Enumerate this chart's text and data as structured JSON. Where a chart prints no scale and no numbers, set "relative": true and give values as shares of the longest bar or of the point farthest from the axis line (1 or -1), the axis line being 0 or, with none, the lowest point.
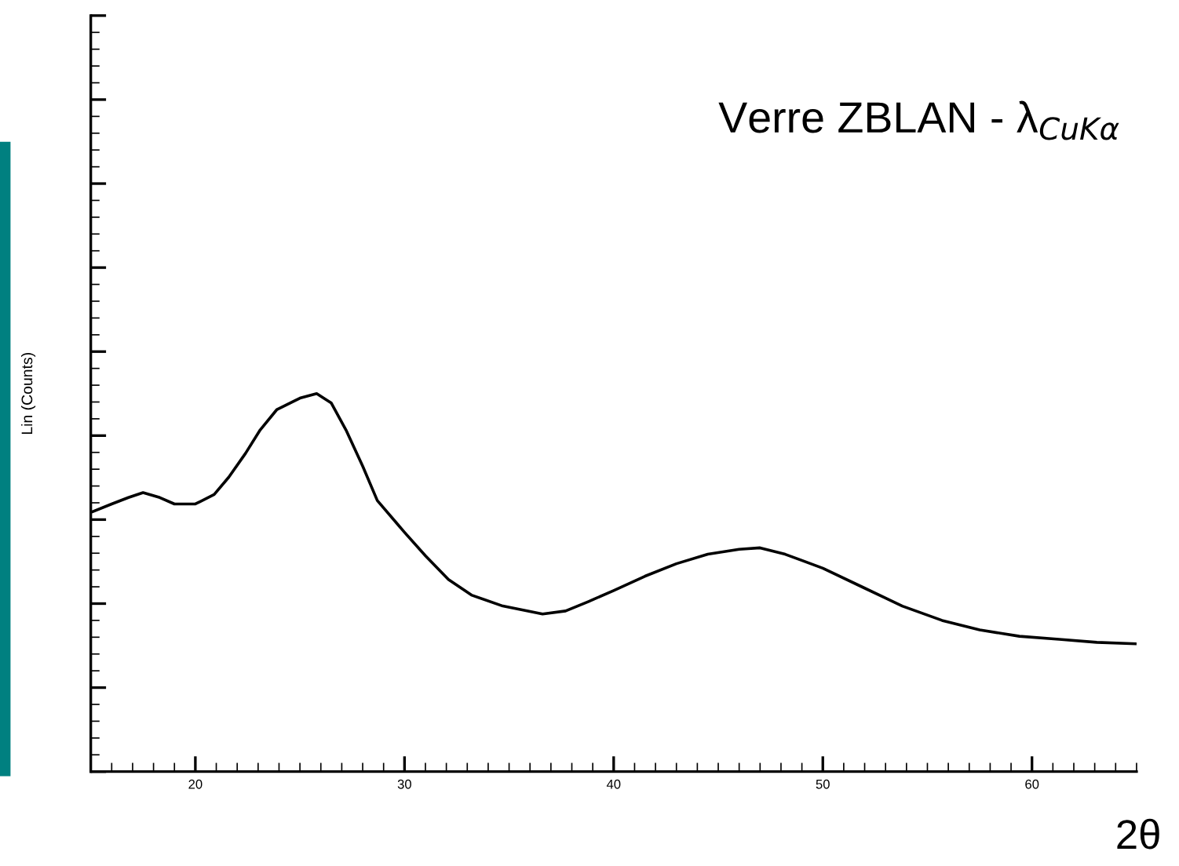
{
  "chart_data": {
    "type": "line",
    "title": "Verre ZBLAN - λ$_{CuKα}$",
    "xlabel": "2θ",
    "ylabel": "Lin (Counts)",
    "relative": true,
    "tick_labels": "x",
    "grid": false,
    "legend": false,
    "xlim": [
      15,
      65
    ],
    "xticks": [
      20,
      30,
      40,
      50,
      60
    ],
    "x": [
      15.1,
      16.0,
      16.8,
      17.5,
      18.3,
      19.0,
      20.0,
      20.9,
      21.6,
      22.4,
      23.1,
      23.9,
      25.0,
      25.8,
      26.5,
      27.2,
      28.0,
      28.7,
      30.0,
      31.0,
      32.1,
      33.2,
      34.7,
      36.6,
      37.7,
      38.8,
      40.0,
      41.5,
      43.0,
      44.5,
      46.0,
      47.0,
      48.2,
      50.0,
      51.9,
      53.8,
      55.7,
      57.5,
      59.4,
      61.3,
      63.1,
      65.0
    ],
    "series": [
      {
        "color": "#000000",
        "values": [
          0.688,
          0.708,
          0.725,
          0.738,
          0.725,
          0.708,
          0.708,
          0.733,
          0.779,
          0.842,
          0.904,
          0.958,
          0.988,
          1.0,
          0.975,
          0.904,
          0.808,
          0.717,
          0.633,
          0.571,
          0.508,
          0.467,
          0.438,
          0.417,
          0.425,
          0.45,
          0.479,
          0.517,
          0.55,
          0.575,
          0.588,
          0.592,
          0.575,
          0.538,
          0.488,
          0.438,
          0.4,
          0.375,
          0.358,
          0.35,
          0.342,
          0.338
        ]
      }
    ]
  }
}
